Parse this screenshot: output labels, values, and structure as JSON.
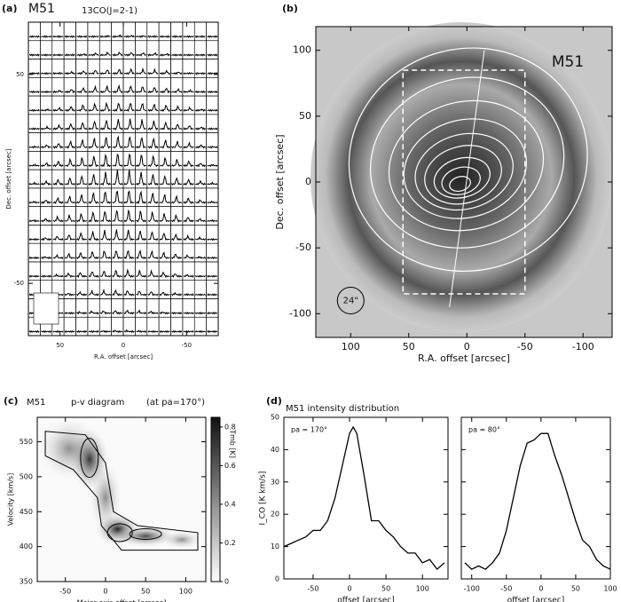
{
  "chart_data": [
    {
      "type": "spectra-grid",
      "label": "(a)",
      "title": "M51",
      "subtitle": "13CO(J=2-1)",
      "x_label": "R.A. offset [arcsec]",
      "y_label": "Dec. offset [arcsec]",
      "xlim": [
        75,
        -75
      ],
      "xticks": [
        50,
        0,
        -50
      ],
      "ylim": [
        -75,
        75
      ],
      "yticks": [
        50,
        -50
      ]
    },
    {
      "type": "contour-map",
      "label": "(b)",
      "title": "M51",
      "x_label": "R.A. offset [arcsec]",
      "y_label": "Dec. offset [arcsec]",
      "xlim": [
        130,
        -125
      ],
      "xticks": [
        100,
        50,
        0,
        -50,
        -100
      ],
      "ylim": [
        -118,
        118
      ],
      "yticks": [
        100,
        50,
        0,
        -50,
        -100
      ],
      "annotation": "24\""
    },
    {
      "type": "pv-diagram",
      "label": "(c)",
      "title": "M51",
      "subtitle": "p-v diagram",
      "annotation": "(at pa=170°)",
      "x_label": "Major axis offset [arcsec]",
      "y_label": "Velocity [km/s]",
      "xlim": [
        -85,
        125
      ],
      "xticks": [
        -50,
        0,
        50,
        100
      ],
      "ylim": [
        350,
        585
      ],
      "yticks": [
        350,
        400,
        450,
        500,
        550
      ],
      "colorbar_label": "Tmb [K]",
      "colorbar_lim": [
        0,
        0.85
      ],
      "colorbar_ticks": [
        0,
        0.2,
        0.4,
        0.6,
        0.8
      ]
    },
    {
      "type": "line",
      "label": "(d)",
      "title": "M51 intensity distribution",
      "annotation": "pa = 170°",
      "x_label": "offset [arcsec]",
      "y_label": "I_CO [K km/s]",
      "xlim": [
        -90,
        135
      ],
      "xticks": [
        -50,
        0,
        50,
        100
      ],
      "ylim": [
        0,
        50
      ],
      "yticks": [
        0,
        10,
        20,
        30,
        40,
        50
      ],
      "x": [
        -90,
        -80,
        -70,
        -60,
        -50,
        -40,
        -30,
        -20,
        -10,
        0,
        5,
        10,
        20,
        30,
        40,
        50,
        60,
        70,
        80,
        90,
        100,
        110,
        120,
        130
      ],
      "values": [
        10,
        11,
        12,
        13,
        15,
        15,
        18,
        25,
        35,
        45,
        47,
        45,
        32,
        18,
        18,
        15,
        13,
        10,
        8,
        8,
        5,
        6,
        3,
        5
      ],
      "color": "#000000"
    },
    {
      "type": "line",
      "annotation": "pa = 80°",
      "x_label": "offset [arcsec]",
      "xlim": [
        -115,
        100
      ],
      "xticks": [
        -100,
        -50,
        0,
        50,
        100
      ],
      "ylim": [
        0,
        50
      ],
      "yticks": [
        0,
        10,
        20,
        30,
        40,
        50
      ],
      "x": [
        -110,
        -100,
        -90,
        -80,
        -70,
        -60,
        -50,
        -40,
        -30,
        -20,
        -10,
        0,
        10,
        20,
        30,
        40,
        50,
        60,
        70,
        80,
        90,
        100
      ],
      "values": [
        5,
        3,
        4,
        3,
        5,
        8,
        15,
        25,
        35,
        42,
        43,
        45,
        45,
        38,
        32,
        25,
        18,
        12,
        10,
        6,
        4,
        3
      ],
      "color": "#000000"
    }
  ]
}
